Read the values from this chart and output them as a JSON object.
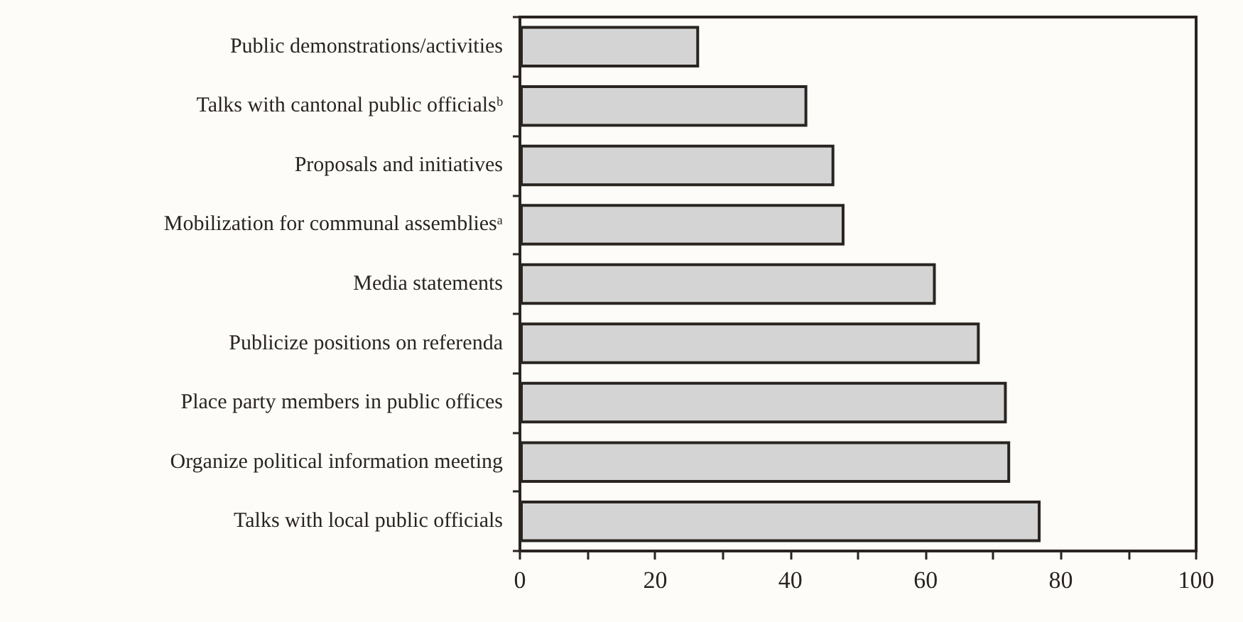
{
  "chart_data": {
    "type": "bar",
    "orientation": "horizontal",
    "categories": [
      "Public demonstrations/activities",
      "Talks with cantonal public officialsᵇ",
      "Proposals and initiatives",
      "Mobilization for communal assembliesᵃ",
      "Media statements",
      "Publicize positions on referenda",
      "Place party members in public offices",
      "Organize political information meeting",
      "Talks with local public officials"
    ],
    "values": [
      26.5,
      42.5,
      46.5,
      48,
      61.5,
      68,
      72,
      72.5,
      77
    ],
    "color": "#d4d4d4",
    "xlim": [
      0,
      100
    ],
    "xticks": [
      0,
      {
        "value": 10,
        "label": null
      },
      20,
      {
        "value": 30,
        "label": null
      },
      40,
      {
        "value": 50,
        "label": null
      },
      60,
      {
        "value": 70,
        "label": null
      },
      80,
      {
        "value": 90,
        "label": null
      },
      100
    ],
    "grid": false
  }
}
